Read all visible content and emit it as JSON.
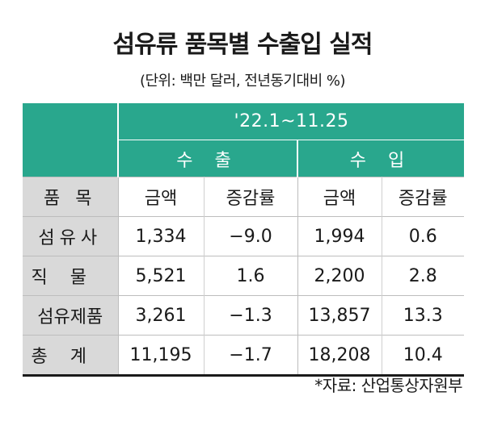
{
  "title": "섬유류 품목별 수출입 실적",
  "subtitle": "(단위: 백만 달러, 전년동기대비 %)",
  "table": {
    "period": "'22.1~11.25",
    "export_label": "수 출",
    "import_label": "수 입",
    "item_header": "품 목",
    "amount_header": "금액",
    "change_header": "증감률",
    "rows": [
      {
        "item": "섬유사",
        "export_amount": "1,334",
        "export_change": "−9.0",
        "import_amount": "1,994",
        "import_change": "0.6"
      },
      {
        "item": "직물",
        "export_amount": "5,521",
        "export_change": "1.6",
        "import_amount": "2,200",
        "import_change": "2.8"
      },
      {
        "item": "섬유제품",
        "export_amount": "3,261",
        "export_change": "−1.3",
        "import_amount": "13,857",
        "import_change": "13.3"
      },
      {
        "item": "총계",
        "export_amount": "11,195",
        "export_change": "−1.7",
        "import_amount": "18,208",
        "import_change": "10.4"
      }
    ]
  },
  "source": "*자료: 산업통상자원부",
  "colors": {
    "header_teal": "#29a78d",
    "item_column_gray": "#d9d9d9"
  }
}
